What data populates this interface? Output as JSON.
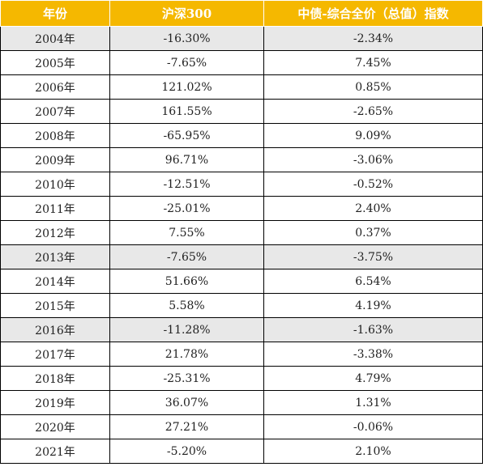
{
  "table": {
    "headers": [
      "年份",
      "沪深300",
      "中债-综合全价（总值）指数"
    ],
    "rows": [
      {
        "year": "2004年",
        "hs300": "-16.30%",
        "bond": "-2.34%",
        "shaded": true
      },
      {
        "year": "2005年",
        "hs300": "-7.65%",
        "bond": "7.45%",
        "shaded": false
      },
      {
        "year": "2006年",
        "hs300": "121.02%",
        "bond": "0.85%",
        "shaded": false
      },
      {
        "year": "2007年",
        "hs300": "161.55%",
        "bond": "-2.65%",
        "shaded": false
      },
      {
        "year": "2008年",
        "hs300": "-65.95%",
        "bond": "9.09%",
        "shaded": false
      },
      {
        "year": "2009年",
        "hs300": "96.71%",
        "bond": "-3.06%",
        "shaded": false
      },
      {
        "year": "2010年",
        "hs300": "-12.51%",
        "bond": "-0.52%",
        "shaded": false
      },
      {
        "year": "2011年",
        "hs300": "-25.01%",
        "bond": "2.40%",
        "shaded": false
      },
      {
        "year": "2012年",
        "hs300": "7.55%",
        "bond": "0.37%",
        "shaded": false
      },
      {
        "year": "2013年",
        "hs300": "-7.65%",
        "bond": "-3.75%",
        "shaded": true
      },
      {
        "year": "2014年",
        "hs300": "51.66%",
        "bond": "6.54%",
        "shaded": false
      },
      {
        "year": "2015年",
        "hs300": "5.58%",
        "bond": "4.19%",
        "shaded": false
      },
      {
        "year": "2016年",
        "hs300": "-11.28%",
        "bond": "-1.63%",
        "shaded": true
      },
      {
        "year": "2017年",
        "hs300": "21.78%",
        "bond": "-3.38%",
        "shaded": false
      },
      {
        "year": "2018年",
        "hs300": "-25.31%",
        "bond": "4.79%",
        "shaded": false
      },
      {
        "year": "2019年",
        "hs300": "36.07%",
        "bond": "1.31%",
        "shaded": false
      },
      {
        "year": "2020年",
        "hs300": "27.21%",
        "bond": "-0.06%",
        "shaded": false
      },
      {
        "year": "2021年",
        "hs300": "-5.20%",
        "bond": "2.10%",
        "shaded": false
      }
    ]
  },
  "colors": {
    "header_bg": "#f5b800",
    "header_text": "#ffffff",
    "shaded_row": "#e8e8e8"
  }
}
